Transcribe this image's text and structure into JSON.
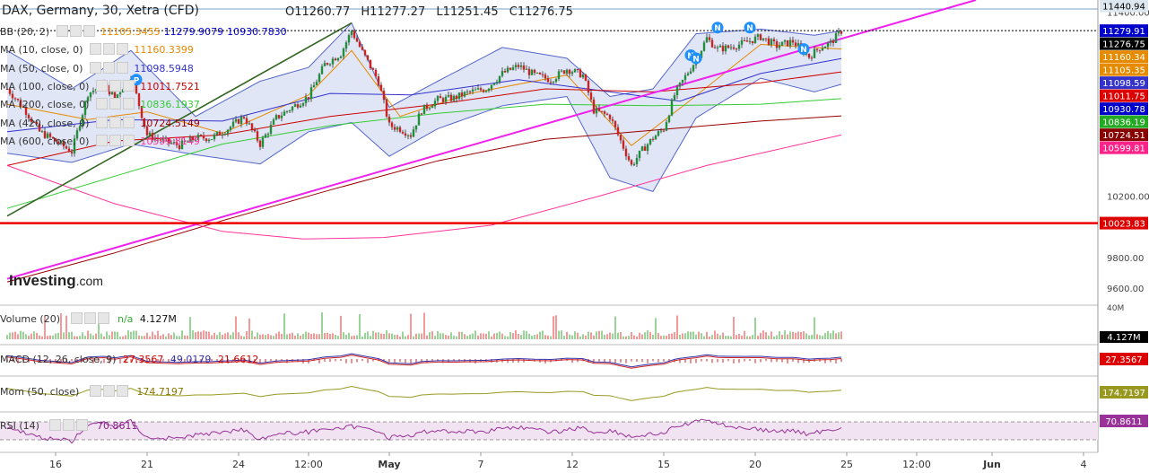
{
  "header": {
    "title": "DAX, Germany, 30, Xetra (CFD)",
    "open": "O11260.77",
    "high": "H11277.27",
    "low": "L11251.45",
    "close": "C11276.75"
  },
  "indicators": [
    {
      "label": "BB (20, 2)",
      "values": [
        "11105.3455",
        "11279.9079",
        "10930.7830"
      ],
      "colors": [
        "#e68a00",
        "#0000cc",
        "#0000cc"
      ]
    },
    {
      "label": "MA (10, close, 0)",
      "values": [
        "11160.3399"
      ],
      "colors": [
        "#e68a00"
      ]
    },
    {
      "label": "MA (50, close, 0)",
      "values": [
        "11098.5948"
      ],
      "colors": [
        "#3333cc"
      ]
    },
    {
      "label": "MA (100, close, 0)",
      "values": [
        "11011.7521"
      ],
      "colors": [
        "#cc0000"
      ]
    },
    {
      "label": "MA (200, close, 0)",
      "values": [
        "10836.1937"
      ],
      "colors": [
        "#33cc33"
      ]
    },
    {
      "label": "MA (420, close, 0)",
      "values": [
        "10724.5149"
      ],
      "colors": [
        "#990000"
      ]
    },
    {
      "label": "MA (600, close, 0)",
      "values": [
        "10599.8149"
      ],
      "colors": [
        "#ff3399"
      ]
    }
  ],
  "price_labels": [
    {
      "text": "11440.94",
      "value": 11440.94,
      "bg": "#dde7f0",
      "fg": "#000"
    },
    {
      "text": "11279.91",
      "value": 11279.91,
      "bg": "#0000cc",
      "fg": "#fff"
    },
    {
      "text": "11276.75",
      "value": 11276.75,
      "bg": "#000000",
      "fg": "#fff"
    },
    {
      "text": "11160.34",
      "value": 11160.34,
      "bg": "#e68a00",
      "fg": "#fff"
    },
    {
      "text": "11105.35",
      "value": 11105.35,
      "bg": "#e68a00",
      "fg": "#fff"
    },
    {
      "text": "11098.59",
      "value": 11098.59,
      "bg": "#3333cc",
      "fg": "#fff"
    },
    {
      "text": "11011.75",
      "value": 11011.75,
      "bg": "#dd0000",
      "fg": "#fff"
    },
    {
      "text": "10930.78",
      "value": 10930.78,
      "bg": "#0000cc",
      "fg": "#fff"
    },
    {
      "text": "10836.19",
      "value": 10836.19,
      "bg": "#22aa22",
      "fg": "#fff"
    },
    {
      "text": "10724.51",
      "value": 10724.51,
      "bg": "#880000",
      "fg": "#fff"
    },
    {
      "text": "10599.81",
      "value": 10599.81,
      "bg": "#ff2288",
      "fg": "#fff"
    },
    {
      "text": "10023.83",
      "value": 10023.83,
      "bg": "#dd0000",
      "fg": "#fff"
    }
  ],
  "axis_ticks": [
    {
      "text": "11400.00",
      "value": 11400
    },
    {
      "text": "10200.00",
      "value": 10200
    },
    {
      "text": "9800.00",
      "value": 9800
    },
    {
      "text": "9600.00",
      "value": 9600
    }
  ],
  "x_labels": [
    {
      "text": "16",
      "bar": 9
    },
    {
      "text": "21",
      "bar": 26
    },
    {
      "text": "24",
      "bar": 43
    },
    {
      "text": "12:00",
      "bar": 56
    },
    {
      "text": "May",
      "bar": 71
    },
    {
      "text": "7",
      "bar": 88
    },
    {
      "text": "12",
      "bar": 105
    },
    {
      "text": "15",
      "bar": 122
    },
    {
      "text": "20",
      "bar": 139
    },
    {
      "text": "25",
      "bar": 156
    },
    {
      "text": "12:00",
      "bar": 169
    },
    {
      "text": "Jun",
      "bar": 183
    },
    {
      "text": "4",
      "bar": 200
    }
  ],
  "volume": {
    "label": "Volume (20)",
    "na": "n/a",
    "value": "4.127M",
    "axis_top": "40M",
    "axis_last": "4.127M"
  },
  "macd": {
    "label": "MACD (12, 26, close, 9)",
    "values": [
      "27.3567",
      "49.0179",
      "21.6612"
    ],
    "axis": "27.3567"
  },
  "mom": {
    "label": "Mom (50, close)",
    "value": "174.7197",
    "axis": "174.7197"
  },
  "rsi": {
    "label": "RSI (14)",
    "value": "70.8611",
    "axis": "70.8611"
  },
  "logo": {
    "main": "Investing",
    "suffix": ".com"
  },
  "chart_data": {
    "type": "line",
    "symbol": "DAX, Germany, 30, Xetra (CFD)",
    "y_range": [
      9500,
      11480
    ],
    "horizontal_line": 10023.83,
    "close_path": [
      [
        0,
        10900
      ],
      [
        3,
        10780
      ],
      [
        6,
        10620
      ],
      [
        9,
        10560
      ],
      [
        12,
        10490
      ],
      [
        15,
        10870
      ],
      [
        18,
        10930
      ],
      [
        20,
        10840
      ],
      [
        23,
        10990
      ],
      [
        26,
        10600
      ],
      [
        29,
        10560
      ],
      [
        32,
        10530
      ],
      [
        35,
        10580
      ],
      [
        38,
        10580
      ],
      [
        41,
        10640
      ],
      [
        44,
        10720
      ],
      [
        47,
        10540
      ],
      [
        50,
        10710
      ],
      [
        53,
        10780
      ],
      [
        56,
        10850
      ],
      [
        59,
        11060
      ],
      [
        62,
        11130
      ],
      [
        64,
        11280
      ],
      [
        66,
        11140
      ],
      [
        69,
        10950
      ],
      [
        71,
        10660
      ],
      [
        73,
        10640
      ],
      [
        75,
        10600
      ],
      [
        77,
        10760
      ],
      [
        80,
        10830
      ],
      [
        83,
        10840
      ],
      [
        86,
        10880
      ],
      [
        89,
        10900
      ],
      [
        92,
        11000
      ],
      [
        95,
        11050
      ],
      [
        98,
        10990
      ],
      [
        101,
        10960
      ],
      [
        104,
        11030
      ],
      [
        107,
        10990
      ],
      [
        109,
        10760
      ],
      [
        112,
        10720
      ],
      [
        114,
        10560
      ],
      [
        116,
        10400
      ],
      [
        118,
        10500
      ],
      [
        120,
        10580
      ],
      [
        122,
        10640
      ],
      [
        124,
        10860
      ],
      [
        126,
        10980
      ],
      [
        128,
        11090
      ],
      [
        130,
        11230
      ],
      [
        132,
        11160
      ],
      [
        134,
        11170
      ],
      [
        137,
        11200
      ],
      [
        140,
        11240
      ],
      [
        143,
        11180
      ],
      [
        146,
        11210
      ],
      [
        149,
        11110
      ],
      [
        151,
        11170
      ],
      [
        153,
        11200
      ],
      [
        155,
        11277
      ]
    ],
    "bb_upper_path": [
      [
        0,
        11150
      ],
      [
        12,
        10900
      ],
      [
        23,
        11150
      ],
      [
        35,
        10720
      ],
      [
        47,
        10950
      ],
      [
        56,
        11040
      ],
      [
        64,
        11330
      ],
      [
        71,
        10780
      ],
      [
        80,
        10950
      ],
      [
        92,
        11170
      ],
      [
        104,
        11100
      ],
      [
        112,
        10850
      ],
      [
        120,
        10900
      ],
      [
        128,
        11260
      ],
      [
        140,
        11290
      ],
      [
        150,
        11250
      ],
      [
        155,
        11280
      ]
    ],
    "bb_lower_path": [
      [
        0,
        10480
      ],
      [
        12,
        10420
      ],
      [
        23,
        10540
      ],
      [
        35,
        10470
      ],
      [
        47,
        10410
      ],
      [
        56,
        10620
      ],
      [
        64,
        10680
      ],
      [
        71,
        10460
      ],
      [
        80,
        10640
      ],
      [
        92,
        10790
      ],
      [
        104,
        10850
      ],
      [
        112,
        10320
      ],
      [
        120,
        10230
      ],
      [
        128,
        10710
      ],
      [
        140,
        10970
      ],
      [
        150,
        10880
      ],
      [
        155,
        10930
      ]
    ],
    "ma_paths": [
      {
        "name": "MA 10",
        "color": "#e68a00",
        "points": [
          [
            0,
            10800
          ],
          [
            15,
            10700
          ],
          [
            26,
            10750
          ],
          [
            40,
            10610
          ],
          [
            56,
            10860
          ],
          [
            64,
            11150
          ],
          [
            73,
            10720
          ],
          [
            86,
            10870
          ],
          [
            104,
            10990
          ],
          [
            116,
            10530
          ],
          [
            126,
            10800
          ],
          [
            140,
            11190
          ],
          [
            155,
            11160
          ]
        ]
      },
      {
        "name": "MA 50",
        "color": "#3333cc",
        "points": [
          [
            0,
            10620
          ],
          [
            20,
            10700
          ],
          [
            40,
            10690
          ],
          [
            60,
            10870
          ],
          [
            75,
            10860
          ],
          [
            95,
            10960
          ],
          [
            110,
            10890
          ],
          [
            125,
            10820
          ],
          [
            140,
            11000
          ],
          [
            155,
            11098
          ]
        ]
      },
      {
        "name": "MA 100",
        "color": "#cc0000",
        "points": [
          [
            0,
            10400
          ],
          [
            20,
            10560
          ],
          [
            40,
            10600
          ],
          [
            60,
            10720
          ],
          [
            80,
            10800
          ],
          [
            100,
            10900
          ],
          [
            120,
            10880
          ],
          [
            140,
            10940
          ],
          [
            155,
            11011
          ]
        ]
      },
      {
        "name": "MA 200",
        "color": "#33cc33",
        "points": [
          [
            0,
            10120
          ],
          [
            20,
            10330
          ],
          [
            40,
            10540
          ],
          [
            60,
            10660
          ],
          [
            80,
            10740
          ],
          [
            100,
            10800
          ],
          [
            120,
            10790
          ],
          [
            140,
            10800
          ],
          [
            155,
            10836
          ]
        ]
      },
      {
        "name": "MA 420",
        "color": "#990000",
        "points": [
          [
            0,
            9640
          ],
          [
            20,
            9830
          ],
          [
            40,
            10040
          ],
          [
            60,
            10240
          ],
          [
            80,
            10430
          ],
          [
            100,
            10570
          ],
          [
            120,
            10630
          ],
          [
            140,
            10690
          ],
          [
            155,
            10724
          ]
        ]
      },
      {
        "name": "MA 600",
        "color": "#ff3399",
        "points": [
          [
            0,
            10400
          ],
          [
            20,
            10150
          ],
          [
            40,
            9970
          ],
          [
            55,
            9920
          ],
          [
            70,
            9930
          ],
          [
            90,
            10010
          ],
          [
            110,
            10200
          ],
          [
            130,
            10400
          ],
          [
            155,
            10599
          ]
        ]
      }
    ],
    "trend_lines": [
      {
        "color": "#336622",
        "points": [
          [
            0,
            10070
          ],
          [
            64,
            11330
          ]
        ]
      },
      {
        "color": "#ee22ee",
        "points": [
          [
            0,
            9660
          ],
          [
            180,
            11480
          ]
        ]
      }
    ],
    "markers": [
      {
        "text": "P",
        "bar": 24,
        "price": 10960
      },
      {
        "text": "N",
        "bar": 127,
        "price": 11120
      },
      {
        "text": "N",
        "bar": 128,
        "price": 11100
      },
      {
        "text": "N",
        "bar": 132,
        "price": 11300
      },
      {
        "text": "N",
        "bar": 138,
        "price": 11300
      },
      {
        "text": "N",
        "bar": 148,
        "price": 11160
      }
    ]
  }
}
